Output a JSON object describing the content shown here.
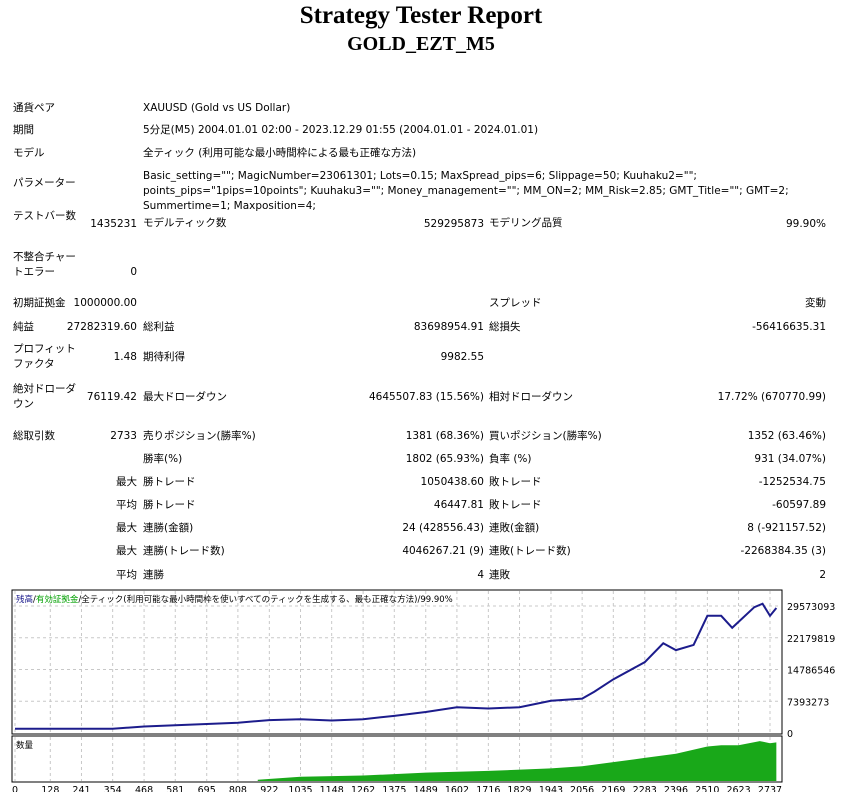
{
  "header": {
    "title": "Strategy Tester Report",
    "subtitle": "GOLD_EZT_M5"
  },
  "info": [
    {
      "label": "通貨ペア",
      "value": "XAUUSD (Gold vs US Dollar)"
    },
    {
      "label": "期間",
      "value": "5分足(M5) 2004.01.01 02:00 - 2023.12.29 01:55 (2004.01.01 - 2024.01.01)"
    },
    {
      "label": "モデル",
      "value": "全ティック (利用可能な最小時間枠による最も正確な方法)"
    },
    {
      "label": "パラメーター",
      "value": "Basic_setting=\"\"; MagicNumber=23061301; Lots=0.15; MaxSpread_pips=6; Slippage=50; Kuuhaku2=\"\"; points_pips=\"1pips=10points\"; Kuuhaku3=\"\"; Money_management=\"\"; MM_ON=2; MM_Risk=2.85; GMT_Title=\"\"; GMT=2; Summertime=1; Maxposition=4;"
    }
  ],
  "stats": [
    {
      "l1": "テストバー数",
      "v1": "1435231",
      "l2": "モデルティック数",
      "v2": "529295873",
      "l3": "モデリング品質",
      "v3": "99.90%"
    },
    {
      "l1": "不整合チャートエラー",
      "v1": "0"
    },
    {
      "l1": "初期証拠金",
      "v1": "1000000.00",
      "l3": "スプレッド",
      "v3": "変動"
    },
    {
      "l1": "純益",
      "v1": "27282319.60",
      "l2": "総利益",
      "v2": "83698954.91",
      "l3": "総損失",
      "v3": "-56416635.31"
    },
    {
      "l1": "プロフィットファクタ",
      "v1": "1.48",
      "l2": "期待利得",
      "v2": "9982.55"
    },
    {
      "l1": "絶対ドローダウン",
      "v1": "76119.42",
      "l2": "最大ドローダウン",
      "v2": "4645507.83 (15.56%)",
      "l3": "相対ドローダウン",
      "v3": "17.72% (670770.99)"
    },
    {
      "l1": "総取引数",
      "v1": "2733",
      "l2": "売りポジション(勝率%)",
      "v2": "1381 (68.36%)",
      "l3": "買いポジション(勝率%)",
      "v3": "1352 (63.46%)"
    },
    {
      "l2": "勝率(%)",
      "v2": "1802 (65.93%)",
      "l3": "負率 (%)",
      "v3": "931 (34.07%)"
    },
    {
      "p": "最大",
      "l2": "勝トレード",
      "v2": "1050438.60",
      "l3": "敗トレード",
      "v3": "-1252534.75"
    },
    {
      "p": "平均",
      "l2": "勝トレード",
      "v2": "46447.81",
      "l3": "敗トレード",
      "v3": "-60597.89"
    },
    {
      "p": "最大",
      "l2": "連勝(金額)",
      "v2": "24 (428556.43)",
      "l3": "連敗(金額)",
      "v3": "8 (-921157.52)"
    },
    {
      "p": "最大",
      "l2": "連勝(トレード数)",
      "v2": "4046267.21 (9)",
      "l3": "連敗(トレード数)",
      "v3": "-2268384.35 (3)"
    },
    {
      "p": "平均",
      "l2": "連勝",
      "v2": "4",
      "l3": "連敗",
      "v3": "2"
    }
  ],
  "chart_data": {
    "type": "line",
    "legend": {
      "balance": "残高",
      "equity": "有効証拠金",
      "model": "全ティック(利用可能な最小時間枠を使いすべてのティックを生成する、最も正確な方法)",
      "quality": "99.90%"
    },
    "volume_label": "数量",
    "x_ticks": [
      0,
      128,
      241,
      354,
      468,
      581,
      695,
      808,
      922,
      1035,
      1148,
      1262,
      1375,
      1489,
      1602,
      1716,
      1829,
      1943,
      2056,
      2169,
      2283,
      2396,
      2510,
      2623,
      2737
    ],
    "y_ticks": [
      0,
      7393273,
      14786546,
      22179819,
      29573093
    ],
    "xlim": [
      0,
      2790
    ],
    "ylim": [
      0,
      31000000
    ],
    "grid": true,
    "colors": {
      "balance": "#1c1c8c",
      "equity": "#00a000",
      "volume": "#19a819",
      "grid": "#c8c8c8"
    },
    "balance": {
      "x": [
        0,
        354,
        468,
        695,
        808,
        922,
        1035,
        1148,
        1262,
        1375,
        1489,
        1602,
        1716,
        1829,
        1943,
        2056,
        2100,
        2169,
        2283,
        2350,
        2396,
        2460,
        2510,
        2560,
        2600,
        2680,
        2710,
        2737,
        2760
      ],
      "y": [
        1000000,
        1000000,
        1500000,
        2100000,
        2400000,
        3000000,
        3200000,
        2900000,
        3200000,
        4000000,
        4900000,
        6000000,
        5700000,
        6000000,
        7500000,
        8000000,
        9600000,
        12500000,
        16500000,
        20900000,
        19300000,
        20500000,
        27300000,
        27300000,
        24500000,
        29300000,
        30100000,
        27300000,
        29100000
      ]
    },
    "volume_relative": {
      "x": [
        880,
        1035,
        1262,
        1489,
        1716,
        1943,
        2056,
        2169,
        2283,
        2396,
        2510,
        2560,
        2623,
        2700,
        2737,
        2760
      ],
      "y": [
        0.03,
        0.1,
        0.13,
        0.2,
        0.24,
        0.3,
        0.35,
        0.45,
        0.55,
        0.65,
        0.82,
        0.85,
        0.85,
        0.95,
        0.9,
        0.92
      ]
    }
  }
}
